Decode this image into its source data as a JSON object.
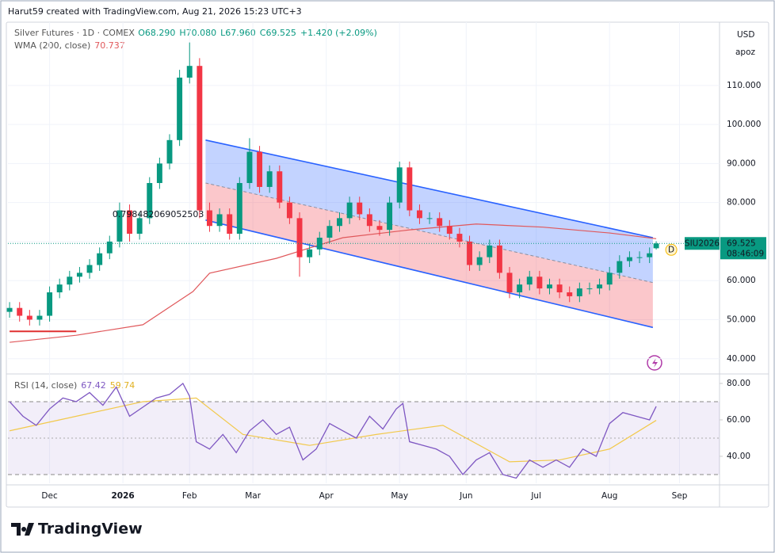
{
  "header": {
    "attribution": "Harut59 created with TradingView.com, Aug 21, 2026 15:23 UTC+3"
  },
  "price_axis": {
    "currency": "USD",
    "scale_mode": "apoz"
  },
  "logo": "TradingView",
  "chart_data": [
    {
      "type": "candlestick",
      "symbol": "Silver Futures · 1D · COMEX",
      "ohlc_legend": {
        "open": "O68.290",
        "high": "H70.080",
        "low": "L67.960",
        "close": "C69.525",
        "change": "+1.420 (+2.09%)"
      },
      "up_color": "#089981",
      "down_color": "#f23645",
      "x": [
        0,
        3,
        6,
        9,
        12,
        15,
        18,
        21,
        24,
        27,
        30,
        33,
        36,
        39,
        42,
        45,
        48,
        51,
        54,
        57,
        60,
        63,
        66,
        69,
        72,
        75,
        78,
        81,
        84,
        87,
        90,
        93,
        96,
        99,
        102,
        105,
        108,
        111,
        114,
        117,
        120,
        123,
        126,
        129,
        132,
        135,
        138,
        141,
        144,
        147,
        150,
        153,
        156,
        159,
        162,
        165,
        168,
        171,
        174,
        177,
        180,
        183,
        186,
        189,
        192,
        194
      ],
      "open": [
        52,
        53,
        51,
        50,
        51,
        57,
        59,
        61,
        62,
        64,
        67,
        70,
        78,
        72,
        76,
        85,
        90,
        96,
        112,
        115,
        78,
        74,
        77,
        72,
        85,
        93,
        84,
        88,
        80,
        76,
        66,
        68,
        71,
        74,
        76,
        80,
        77,
        74,
        73,
        80,
        89,
        78,
        76,
        76,
        74,
        72,
        70,
        64,
        66,
        69,
        62,
        57,
        59,
        61,
        58,
        59,
        57,
        56,
        58,
        58,
        59,
        62,
        65,
        66,
        66,
        68.29
      ],
      "high": [
        54.5,
        54.5,
        52.5,
        52.5,
        58.5,
        60.5,
        62.5,
        63.5,
        65.5,
        68.5,
        71.5,
        80,
        79.5,
        77.5,
        86.5,
        91.5,
        97.5,
        114,
        121,
        117,
        80,
        78.5,
        78.5,
        86.5,
        96.5,
        94.5,
        89.5,
        89.5,
        81.5,
        77.5,
        69.5,
        72.5,
        75.5,
        77.5,
        81.5,
        81.5,
        78.5,
        75.5,
        81.5,
        90.5,
        90.5,
        79.5,
        77.5,
        77.5,
        75.5,
        73.5,
        71.5,
        67.5,
        70.5,
        70.5,
        63.5,
        60.5,
        62.5,
        62.5,
        60.5,
        60.5,
        58.5,
        59.5,
        59.5,
        60.5,
        63.5,
        66.5,
        67.5,
        67.5,
        68.5,
        70.08
      ],
      "low": [
        50.5,
        49.5,
        48.5,
        48.5,
        49.5,
        55.5,
        57.5,
        59.5,
        60.5,
        62.5,
        65.5,
        68.5,
        70,
        70.5,
        74.5,
        83.5,
        88.5,
        94.5,
        110.5,
        76,
        72.5,
        72.5,
        70.5,
        70.5,
        83.5,
        82.5,
        82.5,
        78.5,
        74.5,
        61,
        64.5,
        66.5,
        69.5,
        72.5,
        74.5,
        75.5,
        72.5,
        71.5,
        71.5,
        78.5,
        76.5,
        74.5,
        74.5,
        72.5,
        70.5,
        68.5,
        62.5,
        62.5,
        64.5,
        60.5,
        55.5,
        55.5,
        57.5,
        56.5,
        56.5,
        55.5,
        54.5,
        54.5,
        56.5,
        56.5,
        57.5,
        60.5,
        63.5,
        64.5,
        64.5,
        67.96
      ],
      "close": [
        53,
        51,
        50,
        51,
        57,
        59,
        61,
        62,
        64,
        67,
        70,
        78,
        72,
        76,
        85,
        90,
        96,
        112,
        115,
        78,
        74,
        77,
        72,
        85,
        93,
        84,
        88,
        80,
        76,
        66,
        68,
        71,
        74,
        76,
        80,
        77,
        74,
        73,
        80,
        89,
        78,
        76,
        76,
        74,
        72,
        70,
        64,
        66,
        69,
        62,
        57,
        59,
        61,
        58,
        59,
        57,
        56,
        58,
        58,
        59,
        62,
        65,
        66,
        66,
        67,
        69.525
      ],
      "xlim": [
        -0.5,
        213
      ],
      "xticks": [
        {
          "value": 12,
          "label": "Dec"
        },
        {
          "value": 34,
          "label": "2026"
        },
        {
          "value": 54,
          "label": "Feb"
        },
        {
          "value": 73,
          "label": "Mar"
        },
        {
          "value": 95,
          "label": "Apr"
        },
        {
          "value": 117,
          "label": "May"
        },
        {
          "value": 137,
          "label": "Jun"
        },
        {
          "value": 158,
          "label": "Jul"
        },
        {
          "value": 180,
          "label": "Aug"
        },
        {
          "value": 201,
          "label": "Sep"
        }
      ],
      "ylim": [
        36.5,
        126.2
      ],
      "yticks": [
        {
          "value": 40,
          "label": "40.000"
        },
        {
          "value": 50,
          "label": "50.000"
        },
        {
          "value": 60,
          "label": "60.000"
        },
        {
          "value": 70,
          "label": "70.000"
        },
        {
          "value": 80,
          "label": "80.000"
        },
        {
          "value": 90,
          "label": "90.000"
        },
        {
          "value": 100,
          "label": "100.000"
        },
        {
          "value": 110,
          "label": "110.000"
        }
      ],
      "wma": {
        "name": "WMA (200, close)",
        "value_label": "70.737",
        "color": "#e0585b",
        "x": [
          0,
          20,
          40,
          55,
          60,
          80,
          100,
          120,
          140,
          160,
          180,
          194
        ],
        "values": [
          44.2,
          46,
          48.7,
          57.2,
          61.9,
          65.7,
          71,
          73,
          74.5,
          73.7,
          72.2,
          70.737
        ]
      },
      "channel": {
        "label": "0.798482069052503",
        "line_color": "#2962ff",
        "upper": {
          "x": [
            58.8,
            193
          ],
          "values": [
            96,
            71
          ]
        },
        "middle": {
          "x": [
            58.8,
            193
          ],
          "values": [
            85,
            59.5
          ]
        },
        "lower": {
          "x": [
            58.8,
            193
          ],
          "values": [
            75.5,
            48
          ]
        }
      },
      "hline": {
        "x": [
          0,
          20
        ],
        "value": 47,
        "color": "#e03030"
      },
      "last_price": {
        "symbol": "SIU2026",
        "value": 69.525,
        "label": "69.525",
        "countdown": "08:46:09"
      },
      "marker": "D"
    },
    {
      "type": "line",
      "title": "RSI (14, close)",
      "rsi": {
        "value_label": "67.42",
        "color": "#7e57c2",
        "x": [
          0,
          4,
          8,
          12,
          16,
          20,
          24,
          28,
          32,
          36,
          40,
          44,
          48,
          52,
          54,
          56,
          60,
          64,
          68,
          72,
          76,
          80,
          84,
          88,
          92,
          96,
          100,
          104,
          108,
          112,
          116,
          118,
          120,
          124,
          128,
          132,
          136,
          140,
          144,
          148,
          152,
          156,
          160,
          164,
          168,
          172,
          176,
          180,
          184,
          188,
          192,
          194
        ],
        "values": [
          70,
          62,
          57,
          66,
          72,
          70,
          75,
          68,
          78,
          62,
          67,
          72,
          74,
          80,
          73,
          48,
          44,
          52,
          42,
          54,
          60,
          52,
          56,
          38,
          44,
          58,
          54,
          50,
          62,
          55,
          66,
          69,
          48,
          46,
          44,
          40,
          30,
          38,
          42,
          30,
          28,
          38,
          34,
          38,
          34,
          44,
          40,
          58,
          64,
          62,
          60,
          67.42
        ]
      },
      "ma": {
        "value_label": "59.74",
        "color": "#f2c94c",
        "x": [
          0,
          20,
          40,
          56,
          70,
          90,
          110,
          130,
          150,
          165,
          180,
          194
        ],
        "values": [
          54,
          62,
          70,
          72,
          52,
          46,
          52,
          57,
          37,
          38,
          44,
          59.74
        ]
      },
      "ylim": [
        25.2,
        83.9
      ],
      "yticks": [
        {
          "value": 40,
          "label": "40.00"
        },
        {
          "value": 60,
          "label": "60.00"
        },
        {
          "value": 80,
          "label": "80.00"
        }
      ],
      "bands": [
        30,
        70
      ],
      "midline": 50
    }
  ]
}
